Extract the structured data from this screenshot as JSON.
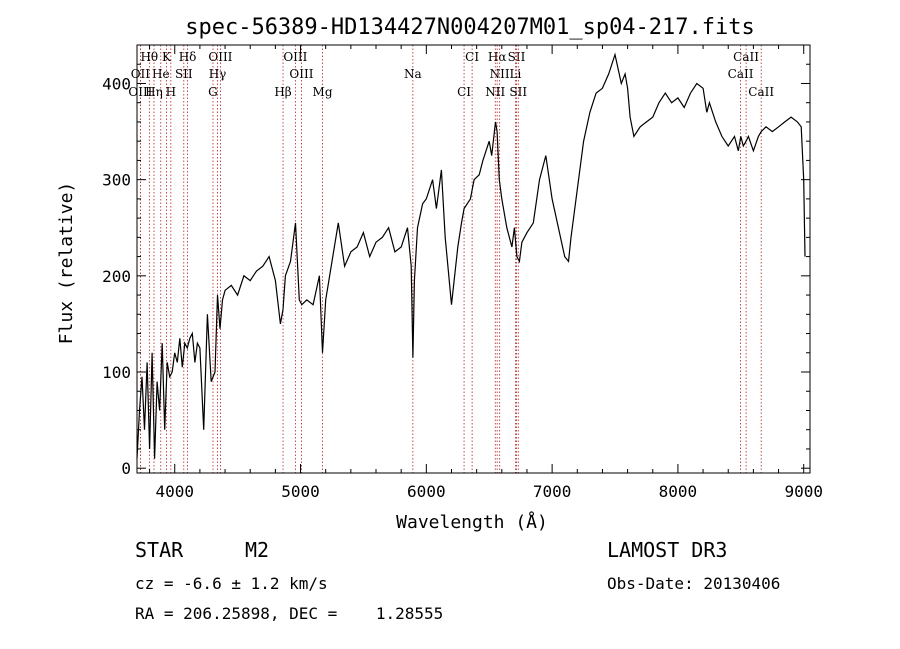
{
  "chart_data": {
    "type": "line",
    "title": "spec-56389-HD134427N004207M01_sp04-217.fits",
    "xlabel": "Wavelength (Å)",
    "ylabel": "Flux (relative)",
    "xlim": [
      3700,
      9050
    ],
    "ylim": [
      -5,
      440
    ],
    "x_ticks": [
      4000,
      5000,
      6000,
      7000,
      8000,
      9000
    ],
    "y_ticks": [
      0,
      100,
      200,
      300,
      400
    ],
    "x_tick_labels": [
      "4000",
      "5000",
      "6000",
      "7000",
      "8000",
      "9000"
    ],
    "y_tick_labels": [
      "0",
      "100",
      "200",
      "300",
      "400"
    ],
    "grid": false,
    "line_color": "#000000",
    "marker_color": "#b22222",
    "series": [
      {
        "name": "spectrum",
        "x": [
          3700,
          3720,
          3740,
          3760,
          3780,
          3800,
          3820,
          3840,
          3860,
          3880,
          3900,
          3920,
          3940,
          3960,
          3980,
          4000,
          4020,
          4040,
          4060,
          4080,
          4100,
          4120,
          4140,
          4160,
          4180,
          4200,
          4230,
          4260,
          4290,
          4320,
          4340,
          4360,
          4380,
          4400,
          4450,
          4500,
          4550,
          4600,
          4650,
          4700,
          4750,
          4800,
          4840,
          4861,
          4880,
          4920,
          4960,
          4990,
          5010,
          5050,
          5100,
          5150,
          5175,
          5200,
          5250,
          5300,
          5350,
          5400,
          5450,
          5500,
          5550,
          5600,
          5650,
          5700,
          5750,
          5800,
          5850,
          5880,
          5893,
          5905,
          5930,
          5970,
          6000,
          6050,
          6080,
          6100,
          6120,
          6150,
          6200,
          6250,
          6280,
          6300,
          6350,
          6380,
          6420,
          6450,
          6500,
          6520,
          6550,
          6563,
          6580,
          6600,
          6640,
          6680,
          6700,
          6720,
          6740,
          6760,
          6800,
          6850,
          6900,
          6950,
          7000,
          7050,
          7100,
          7130,
          7150,
          7200,
          7250,
          7300,
          7350,
          7400,
          7450,
          7500,
          7550,
          7580,
          7600,
          7620,
          7650,
          7700,
          7750,
          7800,
          7850,
          7900,
          7950,
          8000,
          8050,
          8100,
          8150,
          8200,
          8230,
          8250,
          8300,
          8350,
          8400,
          8450,
          8480,
          8500,
          8520,
          8542,
          8560,
          8600,
          8640,
          8662,
          8700,
          8750,
          8800,
          8850,
          8900,
          8950,
          8980,
          9000,
          9010
        ],
        "y": [
          10,
          60,
          95,
          40,
          110,
          20,
          120,
          10,
          90,
          60,
          130,
          40,
          110,
          95,
          100,
          120,
          110,
          135,
          105,
          130,
          125,
          135,
          140,
          110,
          130,
          125,
          40,
          160,
          90,
          100,
          180,
          145,
          175,
          185,
          190,
          180,
          200,
          195,
          205,
          210,
          220,
          195,
          150,
          165,
          200,
          215,
          255,
          175,
          170,
          175,
          170,
          200,
          120,
          175,
          215,
          255,
          210,
          225,
          230,
          245,
          220,
          235,
          240,
          250,
          225,
          230,
          250,
          210,
          115,
          195,
          250,
          275,
          280,
          300,
          270,
          290,
          310,
          240,
          170,
          230,
          255,
          270,
          280,
          300,
          305,
          320,
          340,
          325,
          360,
          350,
          300,
          280,
          250,
          230,
          250,
          220,
          215,
          235,
          245,
          255,
          300,
          325,
          280,
          250,
          220,
          215,
          240,
          290,
          340,
          370,
          390,
          395,
          410,
          430,
          400,
          410,
          395,
          365,
          345,
          355,
          360,
          365,
          380,
          390,
          380,
          385,
          375,
          390,
          400,
          395,
          370,
          380,
          360,
          345,
          335,
          345,
          330,
          345,
          335,
          340,
          345,
          330,
          345,
          350,
          355,
          350,
          355,
          360,
          365,
          360,
          355,
          300,
          220
        ]
      }
    ],
    "line_markers": [
      {
        "label": "Hθ",
        "x": 3798,
        "row": 0
      },
      {
        "label": "K",
        "x": 3934,
        "row": 0
      },
      {
        "label": "Hδ",
        "x": 4102,
        "row": 0
      },
      {
        "label": "OIII",
        "x": 4363,
        "row": 0
      },
      {
        "label": "OIII",
        "x": 4959,
        "row": 0
      },
      {
        "label": "CI",
        "x": 6364,
        "row": 0
      },
      {
        "label": "Hα",
        "x": 6563,
        "row": 0
      },
      {
        "label": "SII",
        "x": 6717,
        "row": 0
      },
      {
        "label": "CaII",
        "x": 8542,
        "row": 0
      },
      {
        "label": "OII",
        "x": 3727,
        "row": 1
      },
      {
        "label": "He",
        "x": 3889,
        "row": 1
      },
      {
        "label": "SII",
        "x": 4072,
        "row": 1
      },
      {
        "label": "Hγ",
        "x": 4340,
        "row": 1
      },
      {
        "label": "OIII",
        "x": 5007,
        "row": 1
      },
      {
        "label": "Na",
        "x": 5893,
        "row": 1
      },
      {
        "label": "NII",
        "x": 6583,
        "row": 1
      },
      {
        "label": "Li",
        "x": 6708,
        "row": 1
      },
      {
        "label": "CaII",
        "x": 8498,
        "row": 1
      },
      {
        "label": "OIII",
        "x": 3727,
        "row": 2
      },
      {
        "label": "Hη",
        "x": 3835,
        "row": 2
      },
      {
        "label": "H",
        "x": 3969,
        "row": 2
      },
      {
        "label": "G",
        "x": 4304,
        "row": 2
      },
      {
        "label": "Hβ",
        "x": 4861,
        "row": 2
      },
      {
        "label": "Mg",
        "x": 5175,
        "row": 2
      },
      {
        "label": "CI",
        "x": 6300,
        "row": 2
      },
      {
        "label": "NII",
        "x": 6548,
        "row": 2
      },
      {
        "label": "SII",
        "x": 6731,
        "row": 2
      },
      {
        "label": "CaII",
        "x": 8662,
        "row": 2
      }
    ]
  },
  "info": {
    "object_type": "STAR",
    "subclass": "M2",
    "survey": "LAMOST DR3",
    "velocity": "cz = -6.6 ± 1.2 km/s",
    "obs_date": "Obs-Date: 20130406",
    "coords": "RA = 206.25898, DEC =    1.28555"
  }
}
